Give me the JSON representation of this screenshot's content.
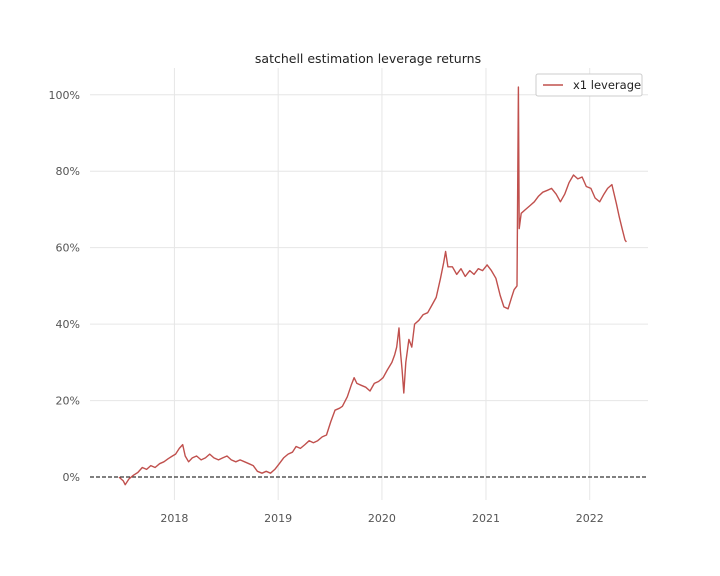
{
  "chart_data": {
    "type": "line",
    "title": "satchell estimation leverage returns",
    "xlabel": "",
    "ylabel": "",
    "x_tick_labels": [
      "2018",
      "2019",
      "2020",
      "2021",
      "2022"
    ],
    "x_tick_values": [
      "2018-01-01",
      "2019-01-01",
      "2020-01-01",
      "2021-01-01",
      "2022-01-01"
    ],
    "y_tick_labels": [
      "0%",
      "20%",
      "40%",
      "60%",
      "80%",
      "100%"
    ],
    "y_tick_values": [
      0,
      20,
      40,
      60,
      80,
      100
    ],
    "xlim": [
      "2017-03-10",
      "2022-07-25"
    ],
    "ylim": [
      -6,
      107
    ],
    "grid": true,
    "zero_line": {
      "y": 0,
      "style": "dashed",
      "color": "#000000"
    },
    "legend": {
      "position": "top-right"
    },
    "series": [
      {
        "name": "x1 leverage",
        "color": "#c0504d",
        "points": [
          [
            "2017-06-20",
            0.0
          ],
          [
            "2017-07-05",
            -1.0
          ],
          [
            "2017-07-12",
            -2.0
          ],
          [
            "2017-07-25",
            -0.5
          ],
          [
            "2017-08-10",
            0.5
          ],
          [
            "2017-08-25",
            1.2
          ],
          [
            "2017-09-10",
            2.5
          ],
          [
            "2017-09-25",
            2.0
          ],
          [
            "2017-10-10",
            3.0
          ],
          [
            "2017-10-25",
            2.5
          ],
          [
            "2017-11-10",
            3.5
          ],
          [
            "2017-11-25",
            4.0
          ],
          [
            "2017-12-10",
            4.8
          ],
          [
            "2017-12-25",
            5.5
          ],
          [
            "2018-01-05",
            6.0
          ],
          [
            "2018-01-18",
            7.5
          ],
          [
            "2018-01-30",
            8.5
          ],
          [
            "2018-02-08",
            5.5
          ],
          [
            "2018-02-20",
            4.0
          ],
          [
            "2018-03-05",
            5.0
          ],
          [
            "2018-03-20",
            5.5
          ],
          [
            "2018-04-05",
            4.5
          ],
          [
            "2018-04-20",
            5.0
          ],
          [
            "2018-05-05",
            6.0
          ],
          [
            "2018-05-20",
            5.0
          ],
          [
            "2018-06-05",
            4.5
          ],
          [
            "2018-06-20",
            5.0
          ],
          [
            "2018-07-05",
            5.5
          ],
          [
            "2018-07-20",
            4.5
          ],
          [
            "2018-08-05",
            4.0
          ],
          [
            "2018-08-20",
            4.5
          ],
          [
            "2018-09-05",
            4.0
          ],
          [
            "2018-09-20",
            3.5
          ],
          [
            "2018-10-05",
            3.0
          ],
          [
            "2018-10-20",
            1.5
          ],
          [
            "2018-11-05",
            1.0
          ],
          [
            "2018-11-20",
            1.5
          ],
          [
            "2018-12-05",
            1.0
          ],
          [
            "2018-12-20",
            2.0
          ],
          [
            "2019-01-05",
            3.5
          ],
          [
            "2019-01-20",
            5.0
          ],
          [
            "2019-02-05",
            6.0
          ],
          [
            "2019-02-20",
            6.5
          ],
          [
            "2019-03-05",
            8.0
          ],
          [
            "2019-03-20",
            7.5
          ],
          [
            "2019-04-05",
            8.5
          ],
          [
            "2019-04-20",
            9.5
          ],
          [
            "2019-05-05",
            9.0
          ],
          [
            "2019-05-20",
            9.5
          ],
          [
            "2019-06-05",
            10.5
          ],
          [
            "2019-06-20",
            11.0
          ],
          [
            "2019-07-05",
            14.5
          ],
          [
            "2019-07-20",
            17.5
          ],
          [
            "2019-08-05",
            18.0
          ],
          [
            "2019-08-15",
            18.5
          ],
          [
            "2019-09-01",
            21.0
          ],
          [
            "2019-09-15",
            24.0
          ],
          [
            "2019-09-25",
            26.0
          ],
          [
            "2019-10-05",
            24.5
          ],
          [
            "2019-10-20",
            24.0
          ],
          [
            "2019-11-05",
            23.5
          ],
          [
            "2019-11-20",
            22.5
          ],
          [
            "2019-12-05",
            24.5
          ],
          [
            "2019-12-20",
            25.0
          ],
          [
            "2020-01-05",
            26.0
          ],
          [
            "2020-01-20",
            28.0
          ],
          [
            "2020-02-05",
            30.0
          ],
          [
            "2020-02-15",
            32.0
          ],
          [
            "2020-02-22",
            34.0
          ],
          [
            "2020-03-01",
            39.0
          ],
          [
            "2020-03-06",
            33.0
          ],
          [
            "2020-03-12",
            28.0
          ],
          [
            "2020-03-18",
            22.0
          ],
          [
            "2020-03-25",
            30.0
          ],
          [
            "2020-04-05",
            36.0
          ],
          [
            "2020-04-15",
            34.0
          ],
          [
            "2020-04-25",
            40.0
          ],
          [
            "2020-05-10",
            41.0
          ],
          [
            "2020-05-25",
            42.5
          ],
          [
            "2020-06-10",
            43.0
          ],
          [
            "2020-06-25",
            45.0
          ],
          [
            "2020-07-10",
            47.0
          ],
          [
            "2020-07-25",
            52.0
          ],
          [
            "2020-08-05",
            56.0
          ],
          [
            "2020-08-12",
            59.0
          ],
          [
            "2020-08-20",
            55.0
          ],
          [
            "2020-09-05",
            55.0
          ],
          [
            "2020-09-20",
            53.0
          ],
          [
            "2020-10-05",
            54.5
          ],
          [
            "2020-10-20",
            52.5
          ],
          [
            "2020-11-05",
            54.0
          ],
          [
            "2020-11-20",
            53.0
          ],
          [
            "2020-12-05",
            54.5
          ],
          [
            "2020-12-20",
            54.0
          ],
          [
            "2021-01-05",
            55.5
          ],
          [
            "2021-01-20",
            54.0
          ],
          [
            "2021-02-05",
            52.0
          ],
          [
            "2021-02-20",
            47.5
          ],
          [
            "2021-03-05",
            44.5
          ],
          [
            "2021-03-20",
            44.0
          ],
          [
            "2021-04-01",
            47.0
          ],
          [
            "2021-04-10",
            49.0
          ],
          [
            "2021-04-20",
            50.0
          ],
          [
            "2021-04-25",
            102.0
          ],
          [
            "2021-04-28",
            65.0
          ],
          [
            "2021-05-05",
            69.0
          ],
          [
            "2021-05-20",
            70.0
          ],
          [
            "2021-06-05",
            71.0
          ],
          [
            "2021-06-20",
            72.0
          ],
          [
            "2021-07-05",
            73.5
          ],
          [
            "2021-07-20",
            74.5
          ],
          [
            "2021-08-05",
            75.0
          ],
          [
            "2021-08-20",
            75.5
          ],
          [
            "2021-09-05",
            74.0
          ],
          [
            "2021-09-20",
            72.0
          ],
          [
            "2021-10-05",
            74.0
          ],
          [
            "2021-10-20",
            77.0
          ],
          [
            "2021-11-05",
            79.0
          ],
          [
            "2021-11-20",
            78.0
          ],
          [
            "2021-12-05",
            78.5
          ],
          [
            "2021-12-20",
            76.0
          ],
          [
            "2022-01-05",
            75.5
          ],
          [
            "2022-01-20",
            73.0
          ],
          [
            "2022-02-05",
            72.0
          ],
          [
            "2022-02-20",
            74.0
          ],
          [
            "2022-03-05",
            75.5
          ],
          [
            "2022-03-20",
            76.5
          ],
          [
            "2022-04-05",
            71.5
          ],
          [
            "2022-04-15",
            68.0
          ],
          [
            "2022-04-25",
            65.0
          ],
          [
            "2022-05-05",
            62.0
          ],
          [
            "2022-05-10",
            61.5
          ]
        ]
      }
    ]
  }
}
